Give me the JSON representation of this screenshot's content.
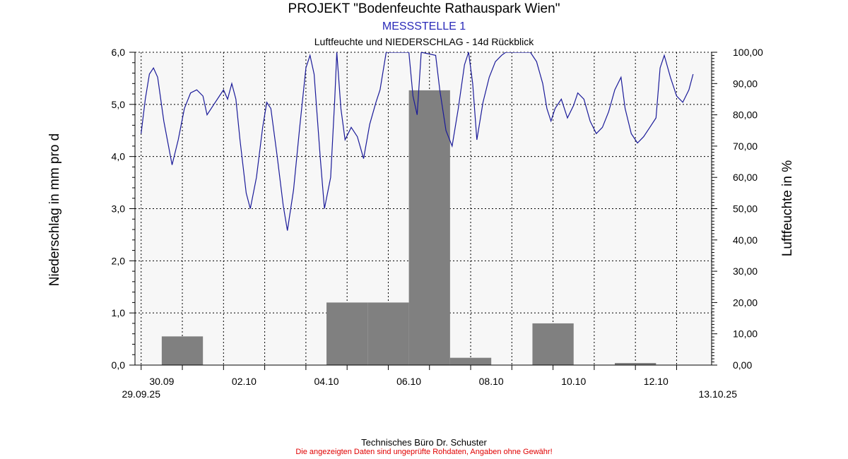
{
  "header": {
    "title": "PROJEKT \"Bodenfeuchte Rathauspark Wien\"",
    "subtitle": "MESSSTELLE 1",
    "subtitle2": "Luftfeuchte und NIEDERSCHLAG - 14d Rückblick"
  },
  "footer": {
    "line1": "Technisches Büro Dr. Schuster",
    "line2": "Die angezeigten Daten sind ungeprüfte Rohdaten, Angaben ohne Gewähr!"
  },
  "chart_data": {
    "type": "bar+line",
    "ylabel_left": "Niederschlag in mm pro d",
    "ylabel_right": "Luftfeuchte in %",
    "ylim_left": [
      0,
      6
    ],
    "ylim_right": [
      0,
      100
    ],
    "y_ticks_left": [
      "0,0",
      "1,0",
      "2,0",
      "3,0",
      "4,0",
      "5,0",
      "6,0"
    ],
    "y_ticks_right": [
      "0,00",
      "10,00",
      "20,00",
      "30,00",
      "40,00",
      "50,00",
      "60,00",
      "70,00",
      "80,00",
      "90,00",
      "100,00"
    ],
    "x_range_days": [
      -0.15,
      13.85
    ],
    "x_ticks": [
      {
        "day": 0.5,
        "label": "30.09"
      },
      {
        "day": 2.5,
        "label": "02.10"
      },
      {
        "day": 4.5,
        "label": "04.10"
      },
      {
        "day": 6.5,
        "label": "06.10"
      },
      {
        "day": 8.5,
        "label": "08.10"
      },
      {
        "day": 10.5,
        "label": "10.10"
      },
      {
        "day": 12.5,
        "label": "12.10"
      }
    ],
    "x_start_label": "29.09.25",
    "x_end_label": "13.10.25",
    "grid": true,
    "colors": {
      "bars": "#808080",
      "line": "#1a1a99",
      "plot_bg": "#f7f7f7"
    },
    "precipitation": {
      "name": "Niederschlag",
      "dates": [
        "30.09",
        "01.10",
        "02.10",
        "03.10",
        "04.10",
        "05.10",
        "06.10",
        "07.10",
        "08.10",
        "09.10",
        "10.10",
        "11.10",
        "12.10"
      ],
      "values": [
        0.55,
        0.0,
        0.0,
        0.0,
        1.2,
        1.2,
        5.27,
        0.14,
        0.0,
        0.8,
        0.0,
        0.04,
        0.0
      ]
    },
    "humidity": {
      "name": "Luftfeuchte",
      "points": [
        [
          0.0,
          74
        ],
        [
          0.1,
          85
        ],
        [
          0.2,
          93
        ],
        [
          0.3,
          95
        ],
        [
          0.4,
          92
        ],
        [
          0.55,
          78
        ],
        [
          0.75,
          64
        ],
        [
          0.9,
          72
        ],
        [
          1.05,
          82
        ],
        [
          1.2,
          87
        ],
        [
          1.35,
          88
        ],
        [
          1.5,
          86
        ],
        [
          1.6,
          80
        ],
        [
          1.75,
          83
        ],
        [
          1.9,
          86
        ],
        [
          2.0,
          88
        ],
        [
          2.1,
          85
        ],
        [
          2.2,
          90
        ],
        [
          2.3,
          85
        ],
        [
          2.4,
          72
        ],
        [
          2.55,
          55
        ],
        [
          2.65,
          50
        ],
        [
          2.8,
          60
        ],
        [
          2.95,
          76
        ],
        [
          3.05,
          84
        ],
        [
          3.15,
          82
        ],
        [
          3.3,
          67
        ],
        [
          3.45,
          51
        ],
        [
          3.55,
          43
        ],
        [
          3.7,
          56
        ],
        [
          3.85,
          76
        ],
        [
          4.0,
          95
        ],
        [
          4.1,
          99
        ],
        [
          4.2,
          93
        ],
        [
          4.35,
          66
        ],
        [
          4.45,
          50
        ],
        [
          4.6,
          60
        ],
        [
          4.7,
          85
        ],
        [
          4.75,
          100
        ],
        [
          4.85,
          82
        ],
        [
          4.95,
          72
        ],
        [
          5.1,
          76
        ],
        [
          5.25,
          73
        ],
        [
          5.4,
          66
        ],
        [
          5.55,
          77
        ],
        [
          5.7,
          84
        ],
        [
          5.8,
          88
        ],
        [
          5.95,
          100
        ],
        [
          6.5,
          100
        ],
        [
          6.6,
          86
        ],
        [
          6.7,
          80
        ],
        [
          6.8,
          100
        ],
        [
          7.15,
          99
        ],
        [
          7.25,
          88
        ],
        [
          7.4,
          75
        ],
        [
          7.55,
          70
        ],
        [
          7.7,
          82
        ],
        [
          7.85,
          96
        ],
        [
          7.95,
          100
        ],
        [
          8.05,
          90
        ],
        [
          8.15,
          72
        ],
        [
          8.3,
          84
        ],
        [
          8.45,
          92
        ],
        [
          8.6,
          97
        ],
        [
          8.75,
          99
        ],
        [
          8.85,
          100
        ],
        [
          9.45,
          100
        ],
        [
          9.6,
          97
        ],
        [
          9.75,
          90
        ],
        [
          9.85,
          82
        ],
        [
          9.95,
          78
        ],
        [
          10.05,
          82
        ],
        [
          10.2,
          85
        ],
        [
          10.35,
          79
        ],
        [
          10.5,
          83
        ],
        [
          10.6,
          87
        ],
        [
          10.75,
          85
        ],
        [
          10.9,
          78
        ],
        [
          11.05,
          74
        ],
        [
          11.2,
          76
        ],
        [
          11.35,
          81
        ],
        [
          11.5,
          88
        ],
        [
          11.65,
          92
        ],
        [
          11.75,
          82
        ],
        [
          11.9,
          74
        ],
        [
          12.05,
          71
        ],
        [
          12.2,
          73
        ],
        [
          12.35,
          76
        ],
        [
          12.5,
          79
        ],
        [
          12.6,
          95
        ],
        [
          12.7,
          99
        ],
        [
          12.85,
          92
        ],
        [
          13.0,
          86
        ],
        [
          13.15,
          84
        ],
        [
          13.3,
          88
        ],
        [
          13.4,
          93
        ]
      ]
    }
  }
}
